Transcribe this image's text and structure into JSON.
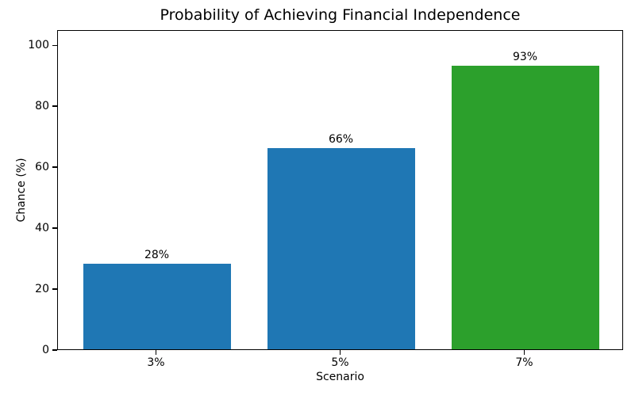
{
  "chart_data": {
    "type": "bar",
    "title": "Probability of Achieving Financial Independence",
    "xlabel": "Scenario",
    "ylabel": "Chance (%)",
    "categories": [
      "3%",
      "5%",
      "7%"
    ],
    "values": [
      28,
      66,
      93
    ],
    "bar_labels": [
      "28%",
      "66%",
      "93%"
    ],
    "bar_colors": [
      "#1f77b4",
      "#1f77b4",
      "#2ca02c"
    ],
    "ylim": [
      0,
      105
    ],
    "yticks": [
      0,
      20,
      40,
      60,
      80,
      100
    ],
    "grid": false,
    "legend": false,
    "background_color": "#ffffff",
    "text_color": "#000000",
    "spine_color": "#000000"
  }
}
